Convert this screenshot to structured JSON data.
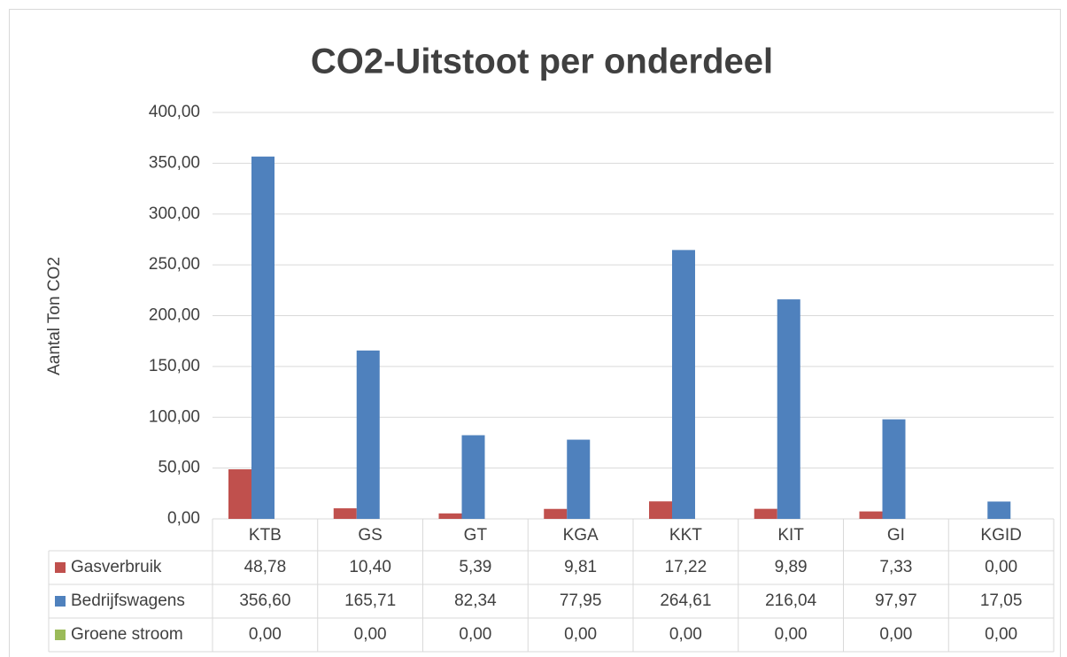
{
  "chart_data": {
    "type": "bar",
    "title": "CO2-Uitstoot per onderdeel",
    "y_label": "Aantal Ton CO2",
    "categories": [
      "KTB",
      "GS",
      "GT",
      "KGA",
      "KKT",
      "KIT",
      "GI",
      "KGID"
    ],
    "series": [
      {
        "name": "Gasverbruik",
        "color": "#c0504d",
        "values": [
          48.78,
          10.4,
          5.39,
          9.81,
          17.22,
          9.89,
          7.33,
          0.0
        ],
        "value_labels": [
          "48,78",
          "10,40",
          "5,39",
          "9,81",
          "17,22",
          "9,89",
          "7,33",
          "0,00"
        ]
      },
      {
        "name": "Bedrijfswagens",
        "color": "#4f81bd",
        "values": [
          356.6,
          165.71,
          82.34,
          77.95,
          264.61,
          216.04,
          97.97,
          17.05
        ],
        "value_labels": [
          "356,60",
          "165,71",
          "82,34",
          "77,95",
          "264,61",
          "216,04",
          "97,97",
          "17,05"
        ]
      },
      {
        "name": "Groene stroom",
        "color": "#9bbb59",
        "values": [
          0,
          0,
          0,
          0,
          0,
          0,
          0,
          0
        ],
        "value_labels": [
          "0,00",
          "0,00",
          "0,00",
          "0,00",
          "0,00",
          "0,00",
          "0,00",
          "0,00"
        ]
      }
    ],
    "ylim": [
      0,
      400
    ],
    "yticks": [
      {
        "value": 0,
        "label": "0,00"
      },
      {
        "value": 50,
        "label": "50,00"
      },
      {
        "value": 100,
        "label": "100,00"
      },
      {
        "value": 150,
        "label": "150,00"
      },
      {
        "value": 200,
        "label": "200,00"
      },
      {
        "value": 250,
        "label": "250,00"
      },
      {
        "value": 300,
        "label": "300,00"
      },
      {
        "value": 350,
        "label": "350,00"
      },
      {
        "value": 400,
        "label": "400,00"
      }
    ],
    "grid": true
  }
}
